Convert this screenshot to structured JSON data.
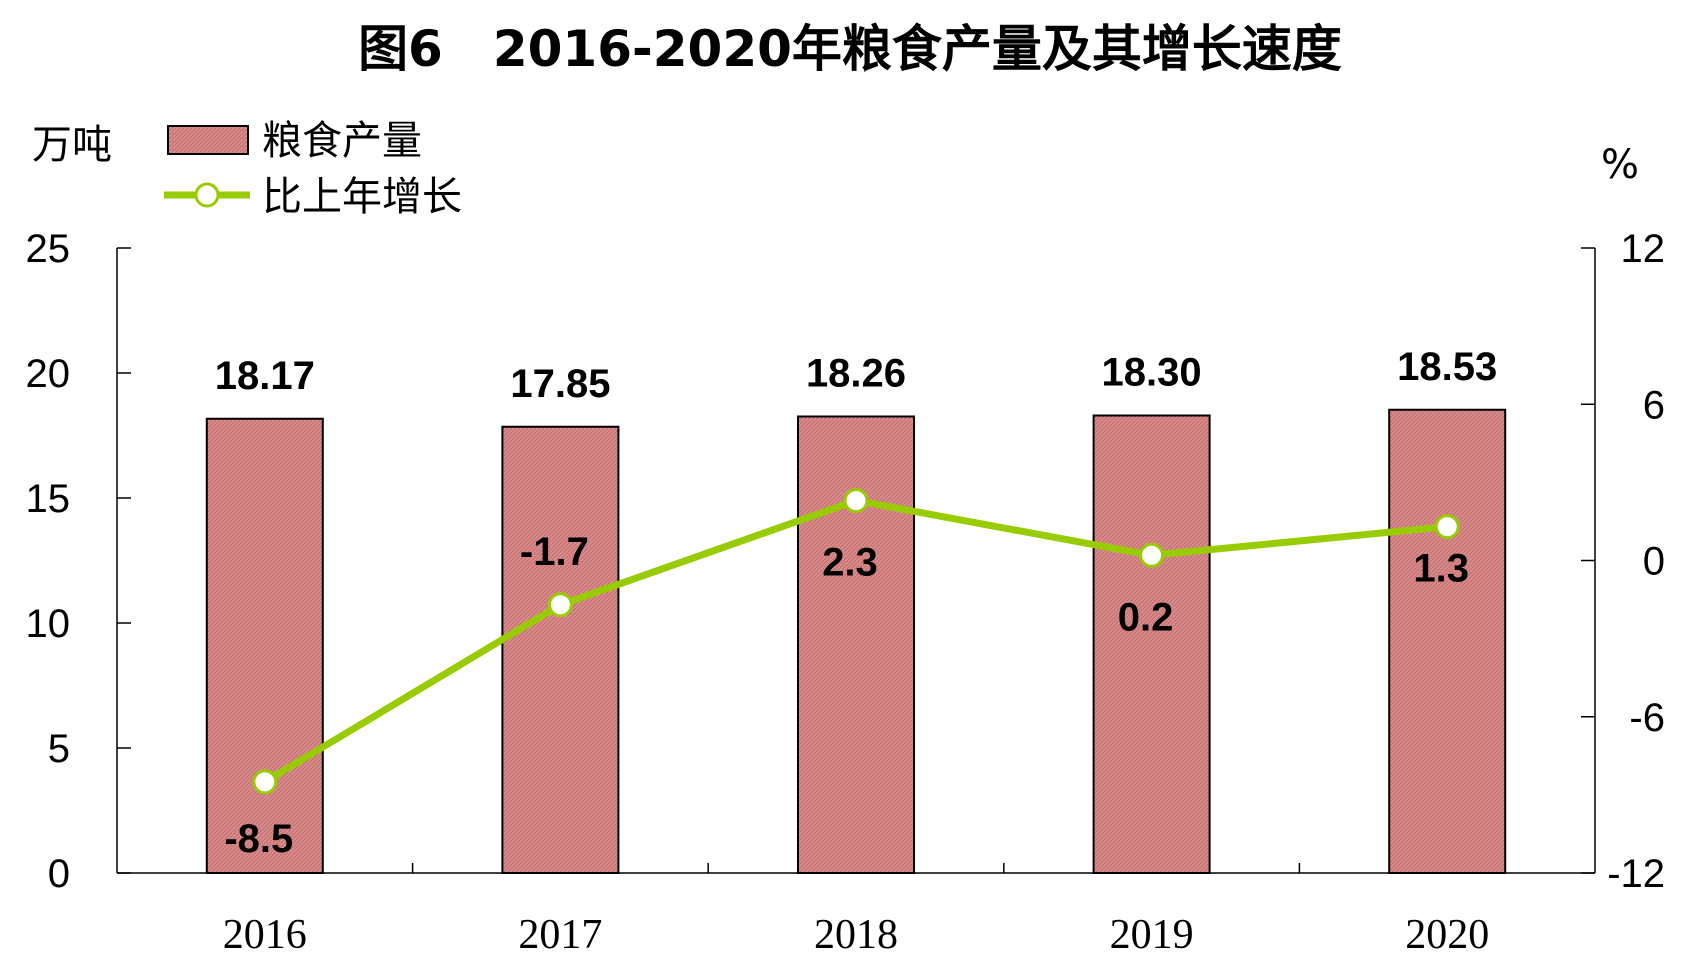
{
  "chart_data": {
    "type": "bar+line",
    "title": "图6　2016-2020年粮食产量及其增长速度",
    "categories": [
      "2016",
      "2017",
      "2018",
      "2019",
      "2020"
    ],
    "series": [
      {
        "name": "粮食产量",
        "type": "bar",
        "axis": "left",
        "values": [
          18.17,
          17.85,
          18.26,
          18.3,
          18.53
        ],
        "labels": [
          "18.17",
          "17.85",
          "18.26",
          "18.30",
          "18.53"
        ],
        "color": "#D88A8A",
        "stroke": "#000000"
      },
      {
        "name": "比上年增长",
        "type": "line",
        "axis": "right",
        "values": [
          -8.5,
          -1.7,
          2.3,
          0.2,
          1.3
        ],
        "labels": [
          "-8.5",
          "-1.7",
          "2.3",
          "0.2",
          "1.3"
        ],
        "color": "#99CC00"
      }
    ],
    "y_left": {
      "unit": "万吨",
      "ylim": [
        0,
        25
      ],
      "ticks": [
        "0",
        "5",
        "10",
        "15",
        "20",
        "25"
      ]
    },
    "y_right": {
      "unit": "%",
      "ylim": [
        -12,
        12
      ],
      "ticks": [
        "-12",
        "-6",
        "0",
        "6",
        "12"
      ]
    },
    "grid": false,
    "legend_position": "top-left"
  }
}
